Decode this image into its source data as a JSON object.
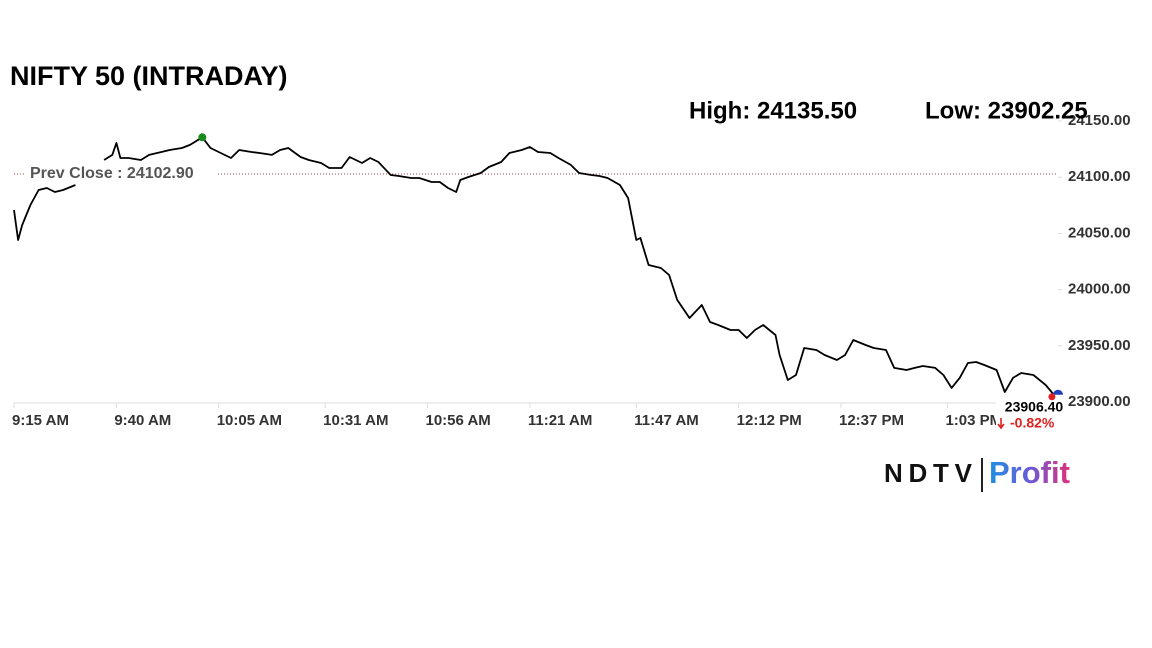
{
  "chart_data": {
    "type": "line",
    "title": "NIFTY 50 (INTRADAY)",
    "high_text": "High: 24135.50",
    "low_text": "Low: 23902.25",
    "prev_close": {
      "value": 24102.9,
      "label": "Prev Close : 24102.90"
    },
    "last": {
      "value": 23906.4,
      "label": "23906.40"
    },
    "change": "-0.82%",
    "color": "#000000",
    "high_marker_color": "#1a8a1a",
    "last_marker_color": "#e02020",
    "end_marker_color": "#1f3fbf",
    "x": [
      555,
      556,
      557,
      559,
      561,
      563,
      565,
      567,
      570,
      572,
      577,
      579,
      580,
      581,
      583,
      586,
      588,
      591,
      593,
      596,
      598,
      601,
      603,
      605,
      608,
      610,
      613,
      615,
      618,
      620,
      622,
      625,
      627,
      630,
      632,
      635,
      637,
      640,
      642,
      644,
      647,
      649,
      652,
      654,
      657,
      659,
      661,
      663,
      664,
      666,
      669,
      671,
      674,
      676,
      679,
      681,
      683,
      686,
      688,
      691,
      693,
      696,
      698,
      700,
      703,
      705,
      707,
      708,
      710,
      713,
      715,
      717,
      720,
      723,
      725,
      727,
      730,
      732,
      734,
      736,
      738,
      741,
      742,
      744,
      746,
      748,
      751,
      753,
      756,
      758,
      760,
      763,
      765,
      768,
      770,
      773,
      775,
      777,
      780,
      782,
      784,
      786,
      788,
      790,
      792,
      795,
      797,
      799,
      801,
      804,
      807,
      809
    ],
    "values": [
      24070.8,
      24044.1,
      24057.5,
      24075.3,
      24088.6,
      24090.4,
      24086.8,
      24088.6,
      24093.1,
      null,
      24115.3,
      24119.8,
      24130.4,
      24117.1,
      24117.1,
      24115.3,
      24119.8,
      24122.4,
      24124.2,
      24126.0,
      24128.7,
      24135.5,
      24126.0,
      24122.4,
      24117.1,
      24124.2,
      24122.4,
      24121.5,
      24119.8,
      24124.2,
      24126.0,
      24118.0,
      24115.3,
      24112.6,
      24108.2,
      24108.2,
      24118.0,
      24112.6,
      24117.1,
      24113.5,
      24102.0,
      24101.1,
      24099.3,
      24099.3,
      24095.7,
      24095.7,
      24090.4,
      24086.8,
      24097.5,
      24100.2,
      24103.7,
      24109.1,
      24113.5,
      24121.5,
      24124.2,
      24126.9,
      24122.4,
      24121.5,
      24117.1,
      24110.9,
      24103.7,
      24102.0,
      24101.1,
      24099.3,
      24093.1,
      24081.5,
      24044.1,
      24045.9,
      24021.9,
      24019.2,
      24013.0,
      23990.8,
      23974.7,
      23986.3,
      23971.2,
      23968.5,
      23964.1,
      23964.1,
      23956.9,
      23964.1,
      23968.5,
      23959.6,
      23941.8,
      23919.6,
      23924.0,
      23948.0,
      23946.3,
      23941.8,
      23937.4,
      23941.8,
      23955.2,
      23950.7,
      23948.0,
      23946.3,
      23930.3,
      23928.5,
      23930.3,
      23932.0,
      23930.3,
      23924.0,
      23912.5,
      23921.4,
      23934.7,
      23935.6,
      23932.9,
      23928.5,
      23908.9,
      23921.4,
      23925.8,
      23924.0,
      23915.1,
      23906.4
    ],
    "xlim": [
      555,
      810
    ],
    "xticks": [
      {
        "value": 555,
        "label": "9:15 AM"
      },
      {
        "value": 580,
        "label": "9:40 AM"
      },
      {
        "value": 605,
        "label": "10:05 AM"
      },
      {
        "value": 631,
        "label": "10:31 AM"
      },
      {
        "value": 656,
        "label": "10:56 AM"
      },
      {
        "value": 681,
        "label": "11:21 AM"
      },
      {
        "value": 707,
        "label": "11:47 AM"
      },
      {
        "value": 732,
        "label": "12:12 PM"
      },
      {
        "value": 757,
        "label": "12:37 PM"
      },
      {
        "value": 783,
        "label": "1:03 PM"
      }
    ],
    "ylim": [
      23900,
      24150
    ],
    "yticks": [
      {
        "value": 23900,
        "label": "23900.00"
      },
      {
        "value": 23950,
        "label": "23950.00"
      },
      {
        "value": 24000,
        "label": "24000.00"
      },
      {
        "value": 24050,
        "label": "24050.00"
      },
      {
        "value": 24100,
        "label": "24100.00"
      },
      {
        "value": 24150,
        "label": "24150.00"
      }
    ]
  },
  "logo": {
    "brand": "NDTV",
    "product": "Profit"
  }
}
